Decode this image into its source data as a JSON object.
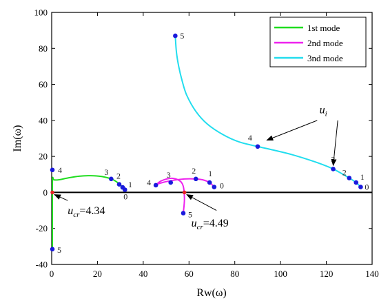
{
  "chart_data": {
    "type": "line",
    "xlabel": "Rw(ω)",
    "ylabel": "Im(ω)",
    "xlim": [
      0,
      140
    ],
    "ylim": [
      -40,
      100
    ],
    "xticks": [
      0,
      20,
      40,
      60,
      80,
      100,
      120,
      140
    ],
    "yticks": [
      -40,
      -20,
      0,
      20,
      40,
      60,
      80,
      100
    ],
    "legend_position": "top-right",
    "colors": {
      "mode1": "#1fdd1f",
      "mode2": "#ee22ee",
      "mode3": "#22ddee",
      "marker": "#1a1adc",
      "critical": "#e62222"
    },
    "series": [
      {
        "name": "1st mode",
        "color": "#1fdd1f",
        "x": [
          32,
          31,
          30,
          29,
          28,
          26,
          22,
          17,
          12,
          7,
          3,
          1,
          0.4,
          0.3,
          0.3,
          0.3,
          0.3
        ],
        "y": [
          1.5,
          2.8,
          4.0,
          5.2,
          6.2,
          7.5,
          8.8,
          9.3,
          9.0,
          8.0,
          7.0,
          7.0,
          8.0,
          0,
          -10,
          -20,
          -31.5
        ],
        "points": [
          {
            "label": "0",
            "x": 32,
            "y": 1.5
          },
          {
            "label": "1",
            "x": 31,
            "y": 2.8
          },
          {
            "label": "2",
            "x": 29.5,
            "y": 4.5
          },
          {
            "label": "3",
            "x": 26,
            "y": 7.5
          },
          {
            "label": "4",
            "x": 0.3,
            "y": 12.5
          },
          {
            "label": "5",
            "x": 0.3,
            "y": -31.5
          }
        ]
      },
      {
        "name": "2nd mode",
        "color": "#ee22ee",
        "x": [
          71,
          69,
          66,
          63,
          58,
          52,
          47,
          45.5,
          48,
          53,
          57,
          58,
          57.5
        ],
        "y": [
          3,
          5.5,
          7,
          7.5,
          7.5,
          6.5,
          5,
          4,
          6.5,
          7.8,
          5,
          -3,
          -11.5
        ],
        "points": [
          {
            "label": "0",
            "x": 71,
            "y": 3
          },
          {
            "label": "1",
            "x": 69,
            "y": 5.5
          },
          {
            "label": "2",
            "x": 63,
            "y": 7.5
          },
          {
            "label": "3",
            "x": 52,
            "y": 5.5
          },
          {
            "label": "4",
            "x": 45.5,
            "y": 4
          },
          {
            "label": "5",
            "x": 57.5,
            "y": -11.5
          }
        ]
      },
      {
        "name": "3nd mode",
        "color": "#22ddee",
        "x": [
          135,
          133,
          130,
          123,
          115,
          105,
          97,
          90,
          82,
          75,
          68,
          63,
          59,
          57,
          55.5,
          54.5,
          54
        ],
        "y": [
          3,
          5.5,
          8,
          13,
          17,
          21,
          23.5,
          25.5,
          28,
          32,
          38,
          45,
          54,
          62,
          70,
          78,
          87
        ],
        "points": [
          {
            "label": "0",
            "x": 135,
            "y": 3
          },
          {
            "label": "1",
            "x": 133,
            "y": 5.5
          },
          {
            "label": "2",
            "x": 130,
            "y": 8
          },
          {
            "label": "3",
            "x": 123,
            "y": 13
          },
          {
            "label": "4",
            "x": 90,
            "y": 25.5
          },
          {
            "label": "5",
            "x": 54,
            "y": 87
          }
        ]
      }
    ],
    "annotations": [
      {
        "base": "u",
        "sub": "cr",
        "value": "=4.34",
        "x": 1.5,
        "y": -6,
        "marker_x": 0.3,
        "marker_y": 0
      },
      {
        "base": "u",
        "sub": "cr",
        "value": "=4.49",
        "x": 58,
        "y": -16,
        "marker_x": 58,
        "marker_y": 0
      },
      {
        "base": "u",
        "sub": "i",
        "value": "",
        "x": 118,
        "y": 44
      }
    ]
  }
}
